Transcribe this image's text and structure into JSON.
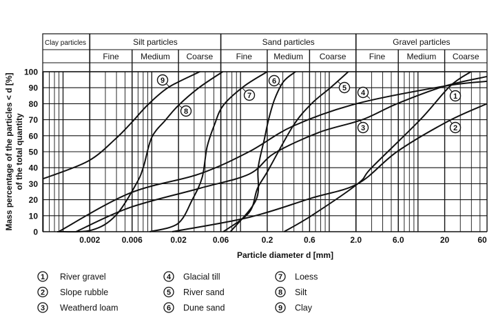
{
  "chart_data": {
    "type": "line",
    "title": "",
    "xlabel": "Particle diameter d [mm]",
    "ylabel_lines": [
      "Mass percentage of the particles < d [%]",
      "of the total quantity"
    ],
    "xscale": "log",
    "xlim": [
      0.00059,
      60
    ],
    "ylim": [
      0,
      100
    ],
    "grid": true,
    "x_ticks": [
      "0.002",
      "0.006",
      "0.02",
      "0.06",
      "0.2",
      "0.6",
      "2.0",
      "6.0",
      "20",
      "60"
    ],
    "x_tick_values": [
      0.002,
      0.006,
      0.02,
      0.06,
      0.2,
      0.6,
      2,
      6,
      20,
      60
    ],
    "y_ticks": [
      "0",
      "10",
      "20",
      "30",
      "40",
      "50",
      "60",
      "70",
      "80",
      "90",
      "100"
    ],
    "classification": {
      "groups": [
        {
          "label": "Clay particles",
          "from": 0.00059,
          "to": 0.002,
          "subs": []
        },
        {
          "label": "Silt particles",
          "from": 0.002,
          "to": 0.06,
          "subs": [
            {
              "label": "Fine",
              "from": 0.002,
              "to": 0.006
            },
            {
              "label": "Medium",
              "from": 0.006,
              "to": 0.02
            },
            {
              "label": "Coarse",
              "from": 0.02,
              "to": 0.06
            }
          ]
        },
        {
          "label": "Sand particles",
          "from": 0.06,
          "to": 2,
          "subs": [
            {
              "label": "Fine",
              "from": 0.06,
              "to": 0.2
            },
            {
              "label": "Medium",
              "from": 0.2,
              "to": 0.6
            },
            {
              "label": "Coarse",
              "from": 0.6,
              "to": 2
            }
          ]
        },
        {
          "label": "Gravel particles",
          "from": 2,
          "to": 60,
          "subs": [
            {
              "label": "Fine",
              "from": 2,
              "to": 6
            },
            {
              "label": "Medium",
              "from": 6,
              "to": 20
            },
            {
              "label": "Coarse",
              "from": 20,
              "to": 60
            }
          ]
        }
      ]
    },
    "series": [
      {
        "id": "1",
        "name": "River gravel",
        "points": [
          [
            0.31,
            0
          ],
          [
            0.63,
            10
          ],
          [
            2.1,
            30
          ],
          [
            3.0,
            40
          ],
          [
            10.6,
            70
          ],
          [
            23,
            91
          ],
          [
            39.5,
            100
          ]
        ]
      },
      {
        "id": "2",
        "name": "Slope rubble",
        "points": [
          [
            0.017,
            0
          ],
          [
            0.125,
            9
          ],
          [
            0.63,
            21
          ],
          [
            2.1,
            30
          ],
          [
            5.8,
            50
          ],
          [
            21.8,
            69
          ],
          [
            60,
            80
          ]
        ]
      },
      {
        "id": "3",
        "name": "Weatherd loam",
        "points": [
          [
            0.0014,
            0
          ],
          [
            0.0056,
            15
          ],
          [
            0.034,
            27
          ],
          [
            0.125,
            36
          ],
          [
            0.24,
            49
          ],
          [
            0.76,
            62
          ],
          [
            2.35,
            70
          ],
          [
            5.8,
            80
          ],
          [
            20,
            91
          ],
          [
            60,
            97
          ]
        ]
      },
      {
        "id": "4",
        "name": "Glacial till",
        "points": [
          [
            0.00089,
            0
          ],
          [
            0.0056,
            24
          ],
          [
            0.034,
            36
          ],
          [
            0.125,
            50
          ],
          [
            0.39,
            66
          ],
          [
            2.03,
            80
          ],
          [
            20,
            91
          ],
          [
            60,
            94
          ]
        ]
      },
      {
        "id": "5",
        "name": "River sand",
        "points": [
          [
            0.064,
            0
          ],
          [
            0.125,
            12
          ],
          [
            0.155,
            27
          ],
          [
            0.203,
            38
          ],
          [
            0.39,
            66
          ],
          [
            0.63,
            80
          ],
          [
            1.03,
            90
          ],
          [
            1.64,
            100
          ]
        ]
      },
      {
        "id": "6",
        "name": "Dune sand",
        "points": [
          [
            0.077,
            0
          ],
          [
            0.15,
            20
          ],
          [
            0.158,
            40
          ],
          [
            0.186,
            58
          ],
          [
            0.207,
            70
          ],
          [
            0.243,
            83
          ],
          [
            0.307,
            94
          ],
          [
            0.417,
            100
          ]
        ]
      },
      {
        "id": "7",
        "name": "Loess",
        "points": [
          [
            0.0095,
            0
          ],
          [
            0.0196,
            5
          ],
          [
            0.0286,
            20
          ],
          [
            0.037,
            34
          ],
          [
            0.042,
            53
          ],
          [
            0.051,
            67
          ],
          [
            0.064,
            79
          ],
          [
            0.11,
            91
          ],
          [
            0.2,
            100
          ]
        ]
      },
      {
        "id": "8",
        "name": "Silt",
        "points": [
          [
            0.00086,
            0
          ],
          [
            0.0021,
            1
          ],
          [
            0.0039,
            10
          ],
          [
            0.0067,
            30
          ],
          [
            0.0081,
            41
          ],
          [
            0.01,
            59
          ],
          [
            0.0144,
            70
          ],
          [
            0.02,
            79
          ],
          [
            0.034,
            90
          ],
          [
            0.063,
            100
          ]
        ]
      },
      {
        "id": "9",
        "name": "Clay",
        "points": [
          [
            0.00059,
            33
          ],
          [
            0.0019,
            44
          ],
          [
            0.0039,
            58
          ],
          [
            0.0061,
            69
          ],
          [
            0.0089,
            79
          ],
          [
            0.0152,
            90
          ],
          [
            0.031,
            98.7
          ],
          [
            0.035,
            100
          ]
        ]
      }
    ],
    "legend_placement": "bottom"
  }
}
